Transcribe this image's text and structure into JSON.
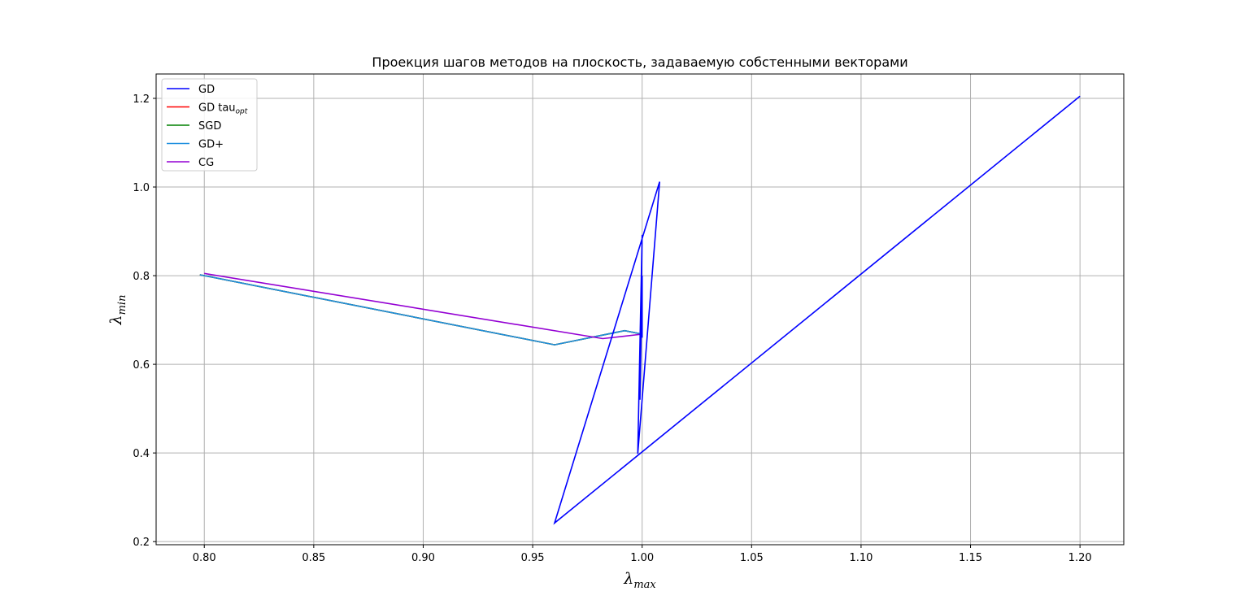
{
  "chart_data": {
    "type": "line",
    "title": "Проекция шагов методов на плоскость, задаваемую собстенными векторами",
    "xlabel": {
      "main": "λ",
      "sub": "max"
    },
    "ylabel": {
      "main": "λ",
      "sub": "min"
    },
    "xlim": [
      0.778,
      1.22
    ],
    "ylim": [
      0.193,
      1.255
    ],
    "xticks": [
      0.8,
      0.85,
      0.9,
      0.95,
      1.0,
      1.05,
      1.1,
      1.15,
      1.2
    ],
    "xtick_labels": [
      "0.80",
      "0.85",
      "0.90",
      "0.95",
      "1.00",
      "1.05",
      "1.10",
      "1.15",
      "1.20"
    ],
    "yticks": [
      0.2,
      0.4,
      0.6,
      0.8,
      1.0,
      1.2
    ],
    "ytick_labels": [
      "0.2",
      "0.4",
      "0.6",
      "0.8",
      "1.0",
      "1.2"
    ],
    "grid": true,
    "legend": "top-left",
    "series": [
      {
        "name": "GD",
        "color": "#0000ff",
        "x": [
          1.2,
          0.96,
          1.008,
          0.998,
          1.0,
          0.999,
          1.0,
          1.0,
          1.0
        ],
        "y": [
          1.205,
          0.242,
          1.012,
          0.398,
          0.892,
          0.52,
          0.8,
          0.66,
          0.67
        ]
      },
      {
        "name": "GD tau",
        "name_sub": "opt",
        "color": "#ff0000",
        "x": [
          0.798,
          0.96,
          0.992,
          1.0
        ],
        "y": [
          0.802,
          0.644,
          0.676,
          0.668
        ]
      },
      {
        "name": "SGD",
        "color": "#008000",
        "x": [
          0.798,
          0.96,
          0.992,
          1.0
        ],
        "y": [
          0.802,
          0.644,
          0.676,
          0.668
        ]
      },
      {
        "name": "GD+",
        "color": "#1f8fdf",
        "x": [
          0.798,
          0.96,
          0.992,
          1.0
        ],
        "y": [
          0.802,
          0.644,
          0.676,
          0.668
        ]
      },
      {
        "name": "CG",
        "color": "#9400d3",
        "x": [
          0.8,
          0.982,
          1.0
        ],
        "y": [
          0.805,
          0.658,
          0.668
        ]
      }
    ]
  }
}
